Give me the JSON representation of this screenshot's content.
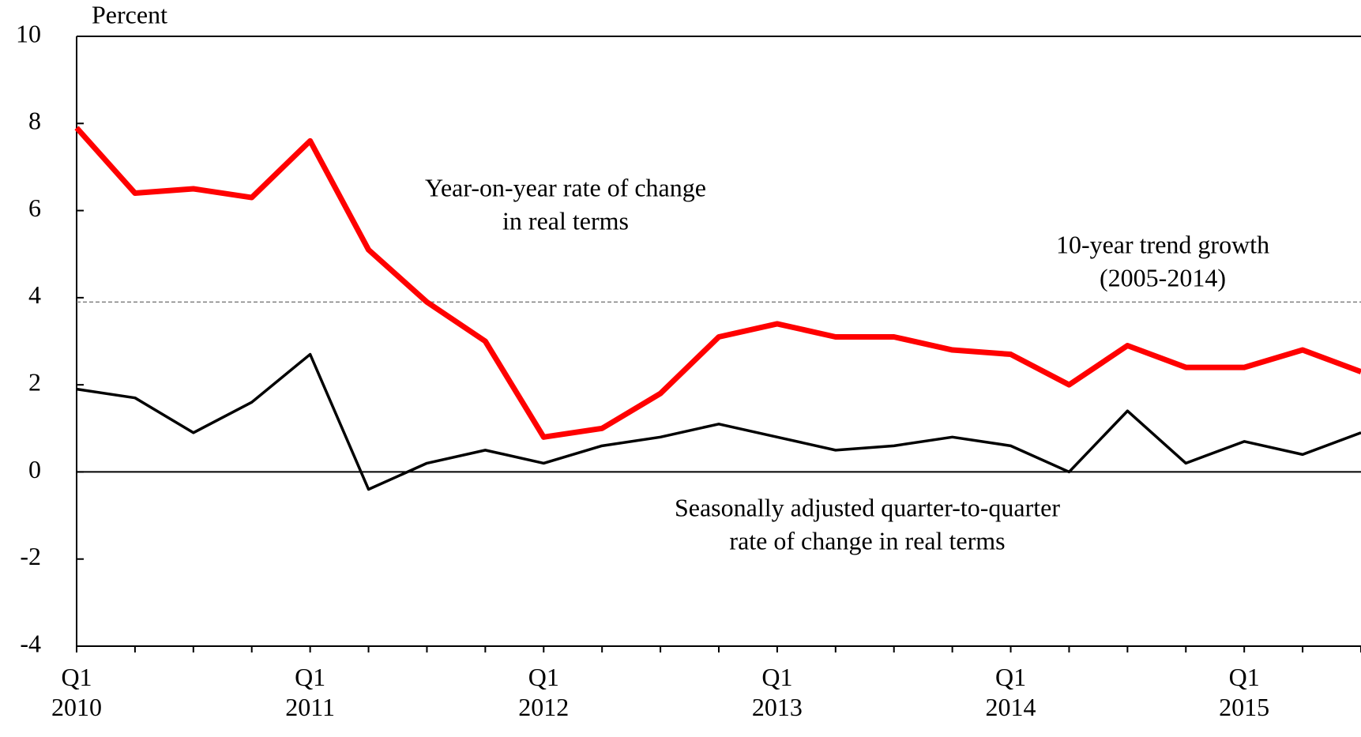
{
  "chart_data": {
    "type": "line",
    "y_axis_label": "Percent",
    "categories": [
      "Q1 2010",
      null,
      null,
      null,
      "Q1 2011",
      null,
      null,
      null,
      "Q1 2012",
      null,
      null,
      null,
      "Q1 2013",
      null,
      null,
      null,
      "Q1 2014",
      null,
      null,
      null,
      "Q1 2015",
      null,
      null
    ],
    "series": [
      {
        "label_lines": [
          "Year-on-year rate of change",
          "in real terms"
        ],
        "color": "#ff0000",
        "values": [
          7.9,
          6.4,
          6.5,
          6.3,
          7.6,
          5.1,
          3.9,
          3.0,
          0.8,
          1.0,
          1.8,
          3.1,
          3.4,
          3.1,
          3.1,
          2.8,
          2.7,
          2.0,
          2.9,
          2.4,
          2.4,
          2.8,
          2.3
        ]
      },
      {
        "label_lines": [
          "Seasonally adjusted quarter-to-quarter",
          "rate of change in real terms"
        ],
        "color": "#000000",
        "values": [
          1.9,
          1.7,
          0.9,
          1.6,
          2.7,
          -0.4,
          0.2,
          0.5,
          0.2,
          0.6,
          0.8,
          1.1,
          0.8,
          0.5,
          0.6,
          0.8,
          0.6,
          0.0,
          1.4,
          0.2,
          0.7,
          0.4,
          0.9
        ]
      }
    ],
    "trend": {
      "value": 3.9,
      "label_lines": [
        "10-year trend growth",
        "(2005-2014)"
      ],
      "color": "#808080"
    },
    "ylim": [
      -4,
      10
    ],
    "yticks": [
      -4,
      -2,
      0,
      2,
      4,
      6,
      8,
      10
    ],
    "grid": false
  }
}
